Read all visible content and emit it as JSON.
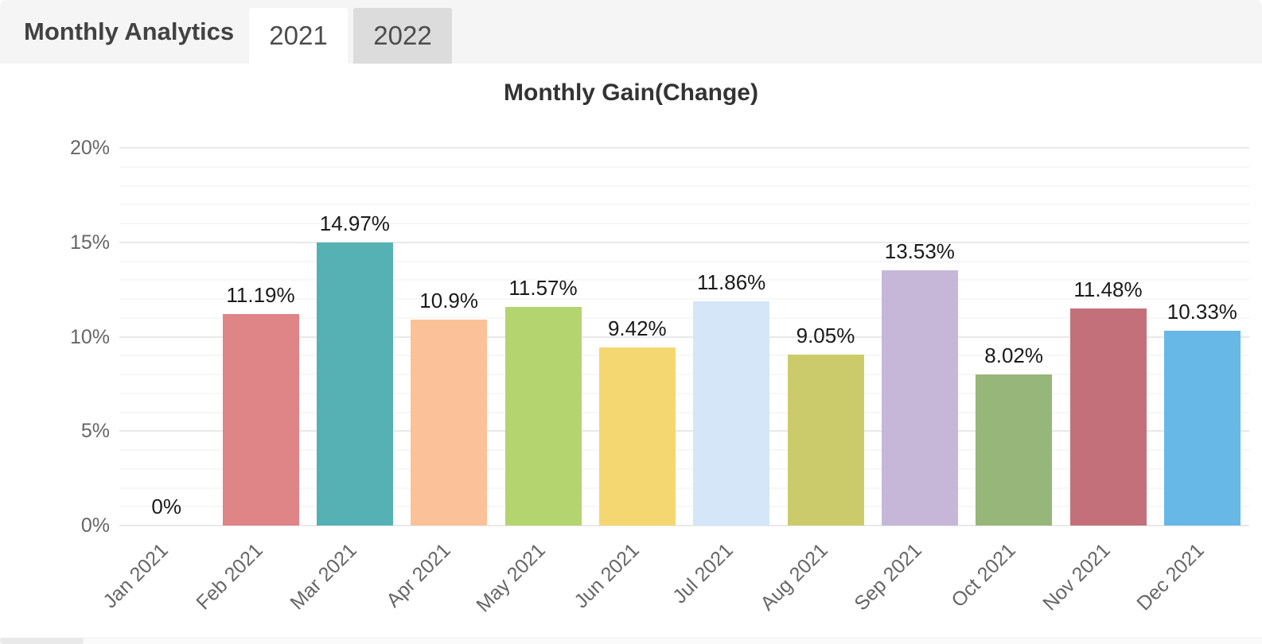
{
  "header": {
    "title": "Monthly Analytics",
    "tabs": [
      {
        "label": "2021",
        "state": "active"
      },
      {
        "label": "2022",
        "state": "inactive"
      }
    ]
  },
  "theme": {
    "header_bg": "#f5f5f5",
    "active_tab_bg": "#ffffff",
    "inactive_tab_bg": "#dcdcdc",
    "tab_text": "#4c4c4c",
    "title_text": "#424242",
    "axis_text": "#666666",
    "data_label_text": "#1a1a1a",
    "major_gridline": "#e9e9e9",
    "minor_gridline": "#f7f7f7"
  },
  "chart_data": {
    "type": "bar",
    "title": "Monthly Gain(Change)",
    "categories": [
      "Jan 2021",
      "Feb 2021",
      "Mar 2021",
      "Apr 2021",
      "May 2021",
      "Jun 2021",
      "Jul 2021",
      "Aug 2021",
      "Sep 2021",
      "Oct 2021",
      "Nov 2021",
      "Dec 2021"
    ],
    "values": [
      0,
      11.19,
      14.97,
      10.9,
      11.57,
      9.42,
      11.86,
      9.05,
      13.53,
      8.02,
      11.48,
      10.33
    ],
    "value_labels": [
      "0%",
      "11.19%",
      "14.97%",
      "10.9%",
      "11.57%",
      "9.42%",
      "11.86%",
      "9.05%",
      "13.53%",
      "8.02%",
      "11.48%",
      "10.33%"
    ],
    "bar_colors": [
      "#e08a8a",
      "#df8487",
      "#55b1b4",
      "#fbc299",
      "#b4d470",
      "#f5d772",
      "#d4e6f8",
      "#cccb6c",
      "#c6b7d9",
      "#97b679",
      "#c4707a",
      "#67b8e6"
    ],
    "xlabel": "",
    "ylabel": "",
    "ylim": [
      0,
      20
    ],
    "y_ticks": [
      {
        "value": 0,
        "label": "0%"
      },
      {
        "value": 5,
        "label": "5%"
      },
      {
        "value": 10,
        "label": "10%"
      },
      {
        "value": 15,
        "label": "15%"
      },
      {
        "value": 20,
        "label": "20%"
      }
    ],
    "grid": {
      "major_step": 5,
      "minor_step": 1
    },
    "legend": "none",
    "x_label_rotation": -45
  }
}
